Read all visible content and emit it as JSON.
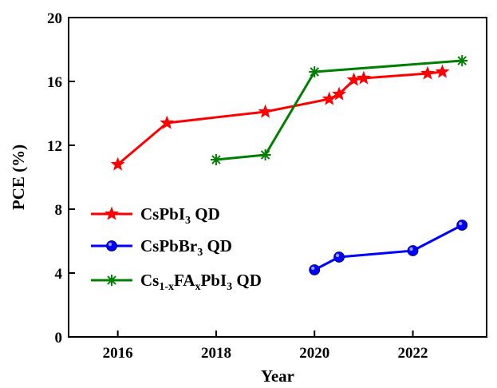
{
  "chart_data": {
    "type": "line",
    "title": "",
    "xlabel": "Year",
    "ylabel": "PCE (%)",
    "xlim": [
      2015,
      2023.5
    ],
    "ylim": [
      0,
      20
    ],
    "xticks": [
      2016,
      2018,
      2020,
      2022
    ],
    "yticks": [
      0,
      4,
      8,
      12,
      16,
      20
    ],
    "grid": false,
    "legend_position": "left-center",
    "series": [
      {
        "name": "CsPbI3 QD",
        "label_parts": [
          {
            "t": "CsPbI"
          },
          {
            "t": "3",
            "sub": true
          },
          {
            "t": " QD"
          }
        ],
        "color": "#ff0000",
        "marker": "star",
        "x": [
          2016,
          2017,
          2019,
          2020.3,
          2020.5,
          2020.8,
          2021,
          2022.3,
          2022.6
        ],
        "y": [
          10.8,
          13.4,
          14.1,
          14.9,
          15.2,
          16.1,
          16.2,
          16.5,
          16.6
        ]
      },
      {
        "name": "CsPbBr3 QD",
        "label_parts": [
          {
            "t": "CsPbBr"
          },
          {
            "t": "3",
            "sub": true
          },
          {
            "t": " QD"
          }
        ],
        "color": "#0000ff",
        "marker": "circle",
        "x": [
          2020,
          2020.5,
          2022,
          2023
        ],
        "y": [
          4.2,
          5.0,
          5.4,
          7.0
        ]
      },
      {
        "name": "Cs1-xFAxPbI3 QD",
        "label_parts": [
          {
            "t": "Cs"
          },
          {
            "t": "1-x",
            "sub": true
          },
          {
            "t": "FA"
          },
          {
            "t": "x",
            "sub": true
          },
          {
            "t": "PbI"
          },
          {
            "t": "3",
            "sub": true
          },
          {
            "t": " QD"
          }
        ],
        "color": "#008000",
        "marker": "asterisk",
        "x": [
          2018,
          2019,
          2020,
          2023
        ],
        "y": [
          11.1,
          11.4,
          16.6,
          17.3
        ]
      }
    ]
  }
}
